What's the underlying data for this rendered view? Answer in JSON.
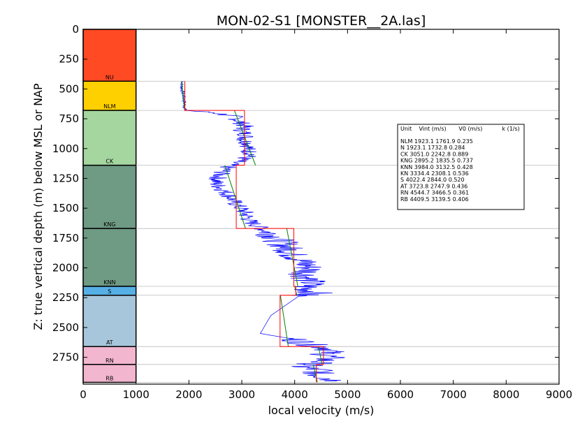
{
  "chart_data": {
    "type": "line",
    "title": "MON-02-S1 [MONSTER__2A.las]",
    "xlabel": "local velocity (m/s)",
    "ylabel": "Z: true vertical depth (m) below MSL or NAP",
    "xlim": [
      0,
      9000
    ],
    "ylim": [
      2975,
      0
    ],
    "x_ticks": [
      "0",
      "1000",
      "2000",
      "3000",
      "4000",
      "5000",
      "6000",
      "7000",
      "8000",
      "9000"
    ],
    "y_ticks": [
      "0",
      "250",
      "500",
      "750",
      "1000",
      "1250",
      "1500",
      "1750",
      "2000",
      "2250",
      "2500",
      "2750"
    ],
    "grid": "horizontal lines at unit boundaries",
    "colors": {
      "log": "#0000ff",
      "vint": "#ff0000",
      "linear_fit": "#008000",
      "gridline": "#bbbbbb"
    },
    "units": [
      {
        "name": "NU",
        "top": 0,
        "base": 435,
        "color": "#ff4a23"
      },
      {
        "name": "NLM",
        "top": 435,
        "base": 680,
        "color": "#ffd000"
      },
      {
        "name": "CK",
        "top": 680,
        "base": 1140,
        "color": "#a5d6a0"
      },
      {
        "name": "KNG",
        "top": 1140,
        "base": 1670,
        "color": "#6f9a84"
      },
      {
        "name": "KNN",
        "top": 1670,
        "base": 2155,
        "color": "#6f9a84"
      },
      {
        "name": "S",
        "top": 2155,
        "base": 2230,
        "color": "#56b0e6"
      },
      {
        "name": "AT",
        "top": 2230,
        "base": 2660,
        "color": "#a7c6db"
      },
      {
        "name": "RN",
        "top": 2660,
        "base": 2810,
        "color": "#f2b6cf"
      },
      {
        "name": "RB",
        "top": 2810,
        "base": 2960,
        "color": "#f2b6cf"
      }
    ],
    "legend": {
      "header": "Unit    Vint (m/s)       V0 (m/s)           k (1/s)",
      "rows": [
        "NLM      1923.1  1761.9  0.235",
        "N       1923.1  1732.8  0.284",
        "CK      3051.0  2242.8  0.889",
        "KNG     2895.2  1835.5  0.737",
        "KNN     3984.0  3132.5  0.428",
        "KN      3334.4  2308.1  0.536",
        "S      4022.4  2844.0  0.520",
        "AT      3723.8  2747.9  0.436",
        "RN      4544.7  3466.5  0.361",
        "RB      4409.5  3139.5  0.406"
      ],
      "placement": "right"
    },
    "vint_segments": [
      {
        "unit": "NLM",
        "top": 435,
        "base": 680,
        "vint": 1923.1
      },
      {
        "unit": "CK",
        "top": 680,
        "base": 1140,
        "vint": 3051.0
      },
      {
        "unit": "KNG",
        "top": 1140,
        "base": 1670,
        "vint": 2895.2
      },
      {
        "unit": "KNN",
        "top": 1670,
        "base": 2155,
        "vint": 3984.0
      },
      {
        "unit": "S",
        "top": 2155,
        "base": 2230,
        "vint": 4022.4
      },
      {
        "unit": "AT",
        "top": 2230,
        "base": 2660,
        "vint": 3723.8
      },
      {
        "unit": "RN",
        "top": 2660,
        "base": 2810,
        "vint": 4544.7
      },
      {
        "unit": "RB",
        "top": 2810,
        "base": 2960,
        "vint": 4409.5
      }
    ],
    "fit_segments": [
      {
        "unit": "NLM",
        "v_top": 1860,
        "v_base": 1920
      },
      {
        "unit": "CK",
        "v_top": 2860,
        "v_base": 3260
      },
      {
        "unit": "KNG",
        "v_top": 2680,
        "v_base": 3070
      },
      {
        "unit": "KNN",
        "v_top": 3850,
        "v_base": 4060
      },
      {
        "unit": "S",
        "v_top": 4000,
        "v_base": 4040
      },
      {
        "unit": "AT",
        "v_top": 3730,
        "v_base": 3880
      },
      {
        "unit": "RN",
        "v_top": 4450,
        "v_base": 4520
      },
      {
        "unit": "RB",
        "v_top": 4350,
        "v_base": 4430
      }
    ],
    "velocity_log": {
      "depth": [
        435,
        470,
        520,
        560,
        600,
        640,
        680,
        700,
        730,
        770,
        810,
        850,
        890,
        930,
        970,
        1010,
        1050,
        1090,
        1130,
        1170,
        1210,
        1250,
        1290,
        1330,
        1370,
        1410,
        1450,
        1490,
        1530,
        1570,
        1610,
        1650,
        1690,
        1730,
        1770,
        1810,
        1850,
        1890,
        1930,
        1970,
        2010,
        2050,
        2090,
        2130,
        2170,
        2210,
        2230,
        2400,
        2550,
        2600,
        2640,
        2680,
        2720,
        2760,
        2800,
        2830,
        2860,
        2890,
        2920,
        2950
      ],
      "velocity": [
        1890,
        1860,
        1880,
        1900,
        1910,
        1920,
        1930,
        2500,
        2850,
        2950,
        3050,
        3000,
        3100,
        3050,
        3150,
        3100,
        3200,
        3000,
        2800,
        2700,
        2600,
        2550,
        2500,
        2600,
        2700,
        2800,
        2850,
        2950,
        3050,
        3100,
        3150,
        3300,
        3450,
        3600,
        3700,
        3800,
        3900,
        3950,
        4100,
        4200,
        4300,
        4200,
        4250,
        4300,
        4200,
        4400,
        4100,
        3550,
        3350,
        4000,
        4250,
        4700,
        4600,
        4650,
        4400,
        4100,
        4500,
        4400,
        4600,
        4800
      ]
    }
  }
}
